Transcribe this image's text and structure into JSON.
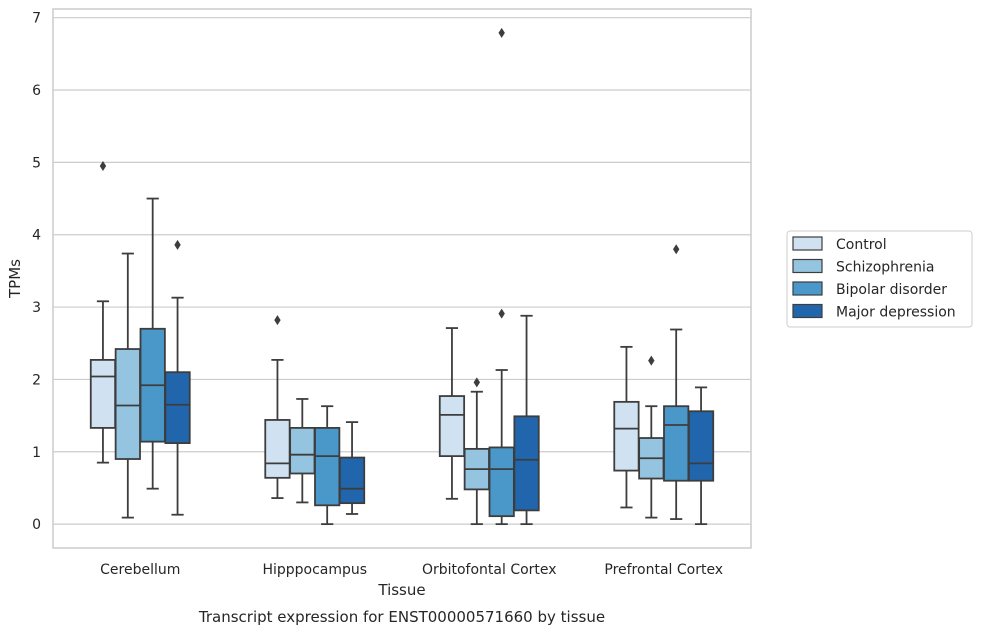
{
  "chart_data": {
    "type": "box",
    "xlabel": "Tissue",
    "ylabel": "TPMs",
    "caption": "Transcript expression for ENST00000571660 by tissue",
    "ylim": [
      -0.33,
      7.12
    ],
    "yticks": [
      "0",
      "1",
      "2",
      "3",
      "4",
      "5",
      "6",
      "7"
    ],
    "grid": "horizontal",
    "legend_position": "right",
    "categories": [
      "Cerebellum",
      "Hipppocampus",
      "Orbitofontal Cortex",
      "Prefrontal Cortex"
    ],
    "series": [
      {
        "name": "Control",
        "color": "#d0e1f2",
        "boxes": [
          {
            "min": 0.85,
            "q1": 1.33,
            "median": 2.04,
            "q3": 2.27,
            "max": 3.08,
            "outliers": [
              4.95
            ]
          },
          {
            "min": 0.36,
            "q1": 0.64,
            "median": 0.84,
            "q3": 1.44,
            "max": 2.27,
            "outliers": [
              2.82
            ]
          },
          {
            "min": 0.35,
            "q1": 0.94,
            "median": 1.51,
            "q3": 1.77,
            "max": 2.71,
            "outliers": []
          },
          {
            "min": 0.23,
            "q1": 0.74,
            "median": 1.32,
            "q3": 1.69,
            "max": 2.45,
            "outliers": []
          }
        ]
      },
      {
        "name": "Schizophrenia",
        "color": "#94c4df",
        "boxes": [
          {
            "min": 0.09,
            "q1": 0.9,
            "median": 1.64,
            "q3": 2.42,
            "max": 3.74,
            "outliers": []
          },
          {
            "min": 0.3,
            "q1": 0.7,
            "median": 0.96,
            "q3": 1.33,
            "max": 1.73,
            "outliers": []
          },
          {
            "min": 0.0,
            "q1": 0.48,
            "median": 0.76,
            "q3": 1.04,
            "max": 1.83,
            "outliers": [
              1.96
            ]
          },
          {
            "min": 0.09,
            "q1": 0.63,
            "median": 0.91,
            "q3": 1.19,
            "max": 1.63,
            "outliers": [
              2.26
            ]
          }
        ]
      },
      {
        "name": "Bipolar disorder",
        "color": "#4a98c9",
        "boxes": [
          {
            "min": 0.49,
            "q1": 1.14,
            "median": 1.92,
            "q3": 2.7,
            "max": 4.5,
            "outliers": []
          },
          {
            "min": 0.0,
            "q1": 0.26,
            "median": 0.94,
            "q3": 1.33,
            "max": 1.63,
            "outliers": []
          },
          {
            "min": 0.0,
            "q1": 0.11,
            "median": 0.76,
            "q3": 1.06,
            "max": 2.13,
            "outliers": [
              2.91,
              6.79
            ]
          },
          {
            "min": 0.07,
            "q1": 0.6,
            "median": 1.37,
            "q3": 1.63,
            "max": 2.69,
            "outliers": [
              3.8
            ]
          }
        ]
      },
      {
        "name": "Major depression",
        "color": "#2166ac",
        "boxes": [
          {
            "min": 0.13,
            "q1": 1.12,
            "median": 1.65,
            "q3": 2.1,
            "max": 3.13,
            "outliers": [
              3.86
            ]
          },
          {
            "min": 0.14,
            "q1": 0.29,
            "median": 0.49,
            "q3": 0.92,
            "max": 1.41,
            "outliers": []
          },
          {
            "min": 0.0,
            "q1": 0.19,
            "median": 0.89,
            "q3": 1.49,
            "max": 2.88,
            "outliers": []
          },
          {
            "min": 0.0,
            "q1": 0.6,
            "median": 0.84,
            "q3": 1.56,
            "max": 1.89,
            "outliers": []
          }
        ]
      }
    ]
  }
}
